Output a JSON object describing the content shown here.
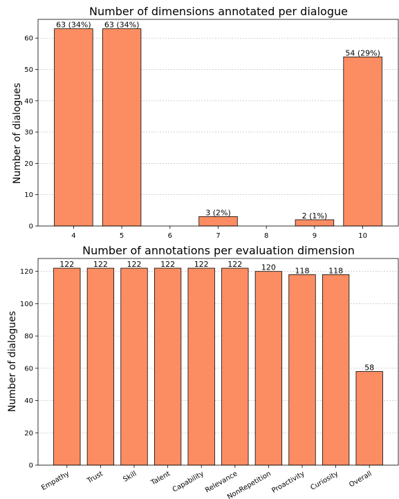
{
  "colors": {
    "bar_fill": "#FC8D62",
    "bar_edge": "#000000",
    "grid": "#b0b0b0",
    "axis": "#000000"
  },
  "chart_data": [
    {
      "type": "bar",
      "title": "Number of dimensions annotated per dialogue",
      "xlabel": "",
      "ylabel": "Number of dialogues",
      "categories": [
        "4",
        "5",
        "6",
        "7",
        "8",
        "9",
        "10"
      ],
      "values": [
        63,
        63,
        0,
        3,
        0,
        2,
        54
      ],
      "data_labels": [
        "63 (34%)",
        "63 (34%)",
        "",
        "3 (2%)",
        "",
        "2 (1%)",
        "54 (29%)"
      ],
      "yticks": [
        0,
        10,
        20,
        30,
        40,
        50,
        60
      ],
      "ylim": [
        0,
        66
      ],
      "grid": "y-dashed"
    },
    {
      "type": "bar",
      "title": "Number of annotations per evaluation dimension",
      "xlabel": "",
      "ylabel": "Number of dialogues",
      "categories": [
        "Empathy",
        "Trust",
        "Skill",
        "Talent",
        "Capability",
        "Relevance",
        "NonRepetition",
        "Proactivity",
        "Curiosity",
        "Overall"
      ],
      "values": [
        122,
        122,
        122,
        122,
        122,
        122,
        120,
        118,
        118,
        58
      ],
      "data_labels": [
        "122",
        "122",
        "122",
        "122",
        "122",
        "122",
        "120",
        "118",
        "118",
        "58"
      ],
      "yticks": [
        0,
        20,
        40,
        60,
        80,
        100,
        120
      ],
      "ylim": [
        0,
        128
      ],
      "grid": "y-dashed"
    }
  ]
}
